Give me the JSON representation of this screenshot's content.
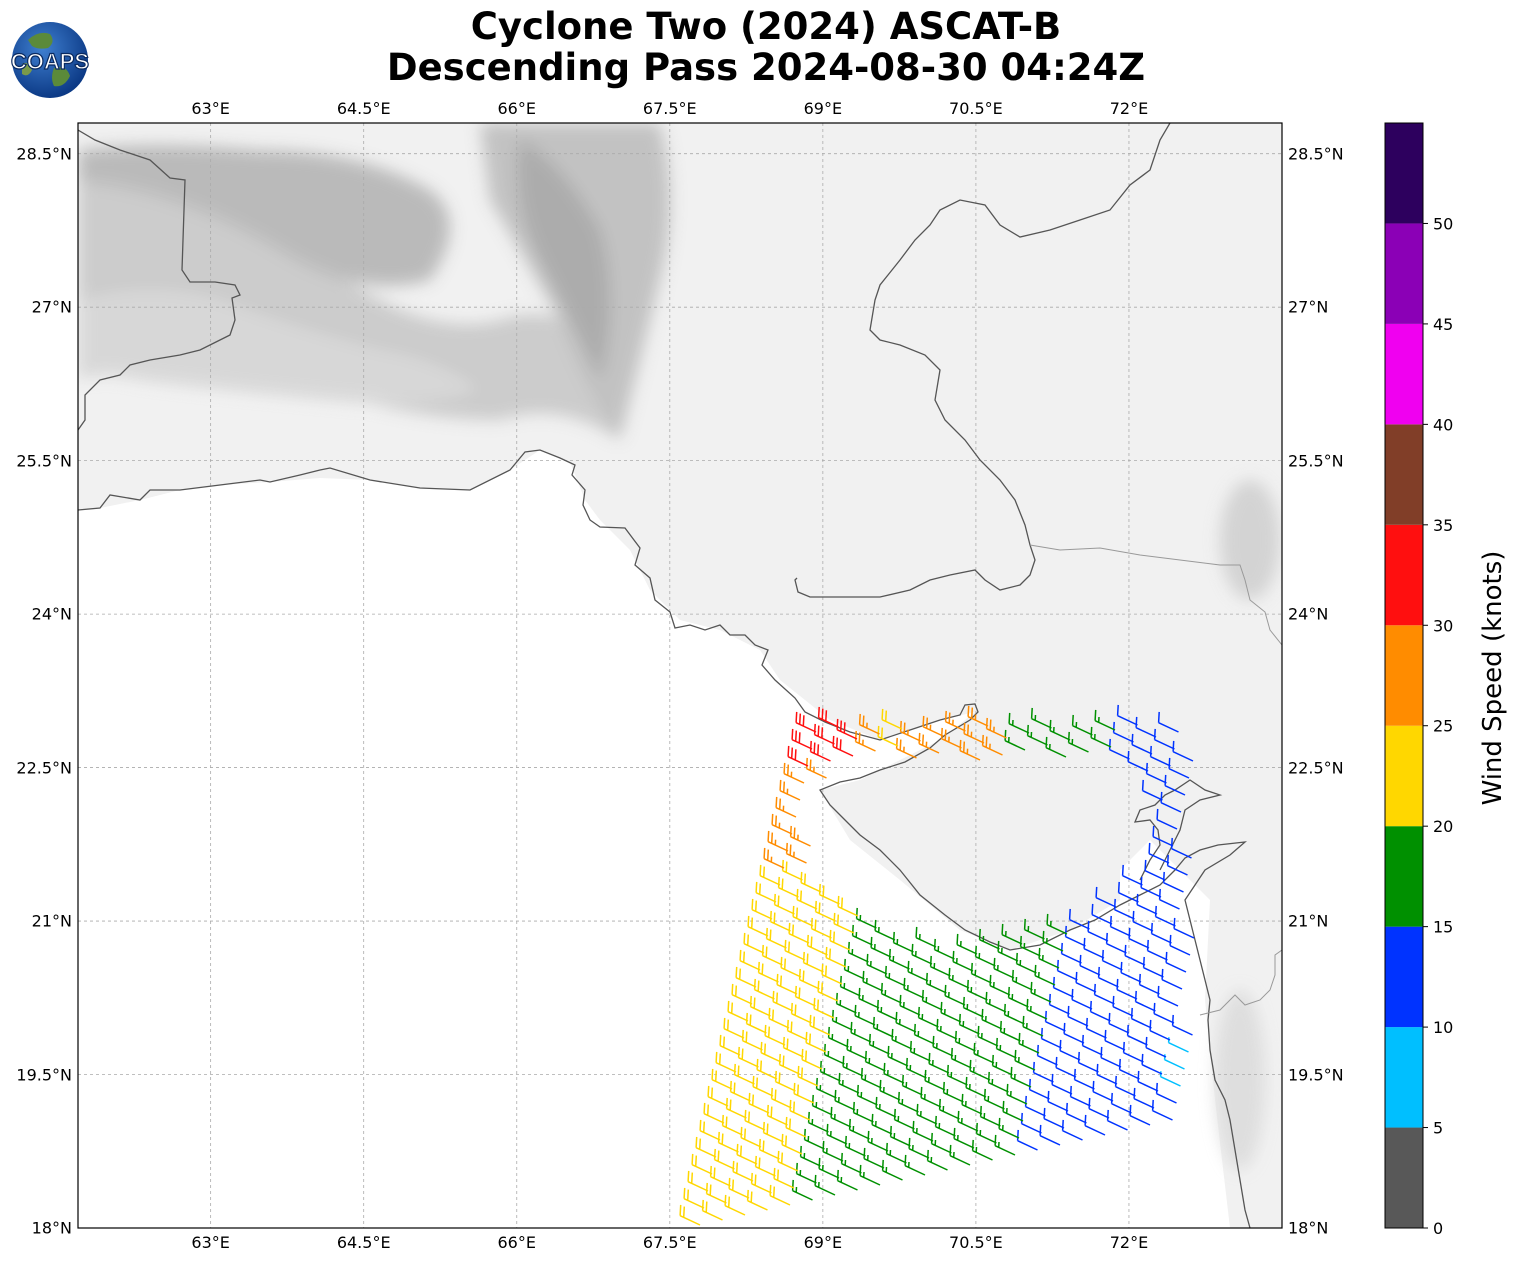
{
  "title": {
    "line1": "Cyclone Two (2024) ASCAT-B",
    "line2": "Descending Pass 2024-08-30 04:24Z"
  },
  "logo": {
    "text": "COAPS",
    "icon": "globe-logo-icon"
  },
  "map": {
    "lon_range": [
      61.7,
      73.5
    ],
    "lat_range": [
      18.0,
      28.8
    ],
    "lon_ticks": [
      {
        "value": 63.0,
        "label": "63°E"
      },
      {
        "value": 64.5,
        "label": "64.5°E"
      },
      {
        "value": 66.0,
        "label": "66°E"
      },
      {
        "value": 67.5,
        "label": "67.5°E"
      },
      {
        "value": 69.0,
        "label": "69°E"
      },
      {
        "value": 70.5,
        "label": "70.5°E"
      },
      {
        "value": 72.0,
        "label": "72°E"
      }
    ],
    "lat_ticks": [
      {
        "value": 18.0,
        "label": "18°N"
      },
      {
        "value": 19.5,
        "label": "19.5°N"
      },
      {
        "value": 21.0,
        "label": "21°N"
      },
      {
        "value": 22.5,
        "label": "22.5°N"
      },
      {
        "value": 24.0,
        "label": "24°N"
      },
      {
        "value": 25.5,
        "label": "25.5°N"
      },
      {
        "value": 27.0,
        "label": "27°N"
      },
      {
        "value": 28.5,
        "label": "28.5°N"
      }
    ],
    "grid": true,
    "coastline_color": "#555555",
    "border_color": "#999999"
  },
  "colorbar": {
    "label": "Wind Speed (knots)",
    "bins": [
      {
        "min": 0,
        "max": 5,
        "color": "#585858"
      },
      {
        "min": 5,
        "max": 10,
        "color": "#00bfff"
      },
      {
        "min": 10,
        "max": 15,
        "color": "#0033ff"
      },
      {
        "min": 15,
        "max": 20,
        "color": "#009000"
      },
      {
        "min": 20,
        "max": 25,
        "color": "#ffd700"
      },
      {
        "min": 25,
        "max": 30,
        "color": "#ff8c00"
      },
      {
        "min": 30,
        "max": 35,
        "color": "#ff0f0f"
      },
      {
        "min": 35,
        "max": 40,
        "color": "#813e28"
      },
      {
        "min": 40,
        "max": 45,
        "color": "#f000f0"
      },
      {
        "min": 45,
        "max": 50,
        "color": "#8b00b6"
      },
      {
        "min": 50,
        "max": 55,
        "color": "#2d005e"
      }
    ],
    "ticks": [
      "0",
      "5",
      "10",
      "15",
      "20",
      "25",
      "30",
      "35",
      "40",
      "45",
      "50"
    ]
  }
}
